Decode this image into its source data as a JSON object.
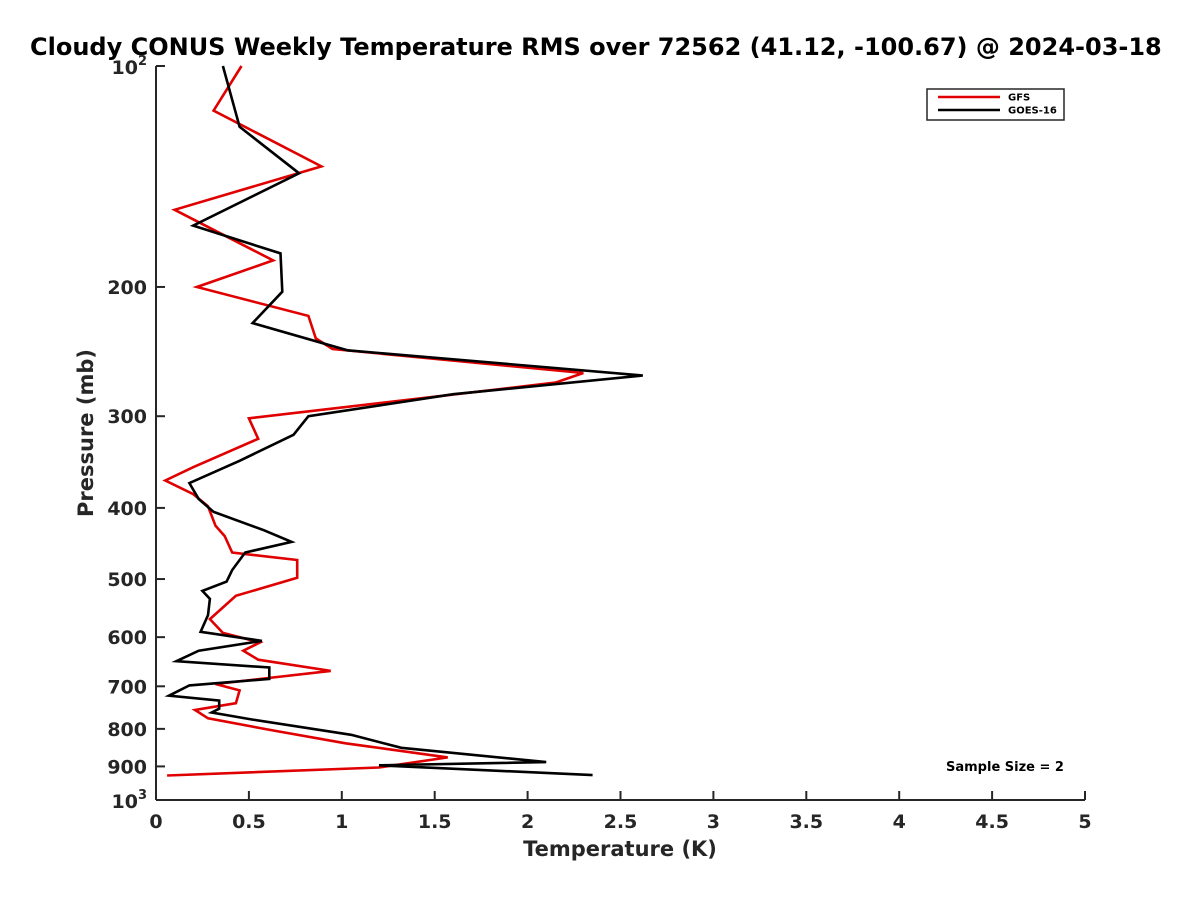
{
  "chart_data": {
    "type": "line",
    "title": "Cloudy CONUS Weekly Temperature RMS over 72562 (41.12, -100.67) @ 2024-03-18",
    "xlabel": "Temperature (K)",
    "ylabel": "Pressure (mb)",
    "xlim": [
      0,
      5
    ],
    "ylim": [
      100,
      1000
    ],
    "yscale": "log",
    "y_reversed": true,
    "x_ticks": [
      "0",
      "0.5",
      "1",
      "1.5",
      "2",
      "2.5",
      "3",
      "3.5",
      "4",
      "4.5",
      "5"
    ],
    "y_ticks": [
      {
        "value": 100,
        "base": "10",
        "exp": "2"
      },
      {
        "value": 200,
        "label": "200"
      },
      {
        "value": 300,
        "label": "300"
      },
      {
        "value": 400,
        "label": "400"
      },
      {
        "value": 500,
        "label": "500"
      },
      {
        "value": 600,
        "label": "600"
      },
      {
        "value": 700,
        "label": "700"
      },
      {
        "value": 800,
        "label": "800"
      },
      {
        "value": 900,
        "label": "900"
      },
      {
        "value": 1000,
        "base": "10",
        "exp": "3"
      }
    ],
    "grid": false,
    "legend_position": "top-right",
    "annotation": "Sample Size = 2",
    "series": [
      {
        "name": "GFS",
        "color": "#e00000",
        "points": [
          [
            0.46,
            100
          ],
          [
            0.31,
            115
          ],
          [
            0.89,
            137
          ],
          [
            0.1,
            157
          ],
          [
            0.63,
            184
          ],
          [
            0.22,
            200
          ],
          [
            0.82,
            219
          ],
          [
            0.86,
            235
          ],
          [
            0.95,
            243
          ],
          [
            2.3,
            262
          ],
          [
            2.15,
            270
          ],
          [
            0.5,
            302
          ],
          [
            0.55,
            322
          ],
          [
            0.2,
            352
          ],
          [
            0.05,
            367
          ],
          [
            0.2,
            383
          ],
          [
            0.28,
            398
          ],
          [
            0.32,
            423
          ],
          [
            0.37,
            437
          ],
          [
            0.41,
            460
          ],
          [
            0.76,
            471
          ],
          [
            0.76,
            498
          ],
          [
            0.43,
            527
          ],
          [
            0.29,
            567
          ],
          [
            0.36,
            592
          ],
          [
            0.56,
            610
          ],
          [
            0.47,
            626
          ],
          [
            0.55,
            644
          ],
          [
            0.94,
            667
          ],
          [
            0.32,
            695
          ],
          [
            0.45,
            709
          ],
          [
            0.43,
            738
          ],
          [
            0.21,
            754
          ],
          [
            0.28,
            774
          ],
          [
            0.62,
            803
          ],
          [
            1.02,
            837
          ],
          [
            1.57,
            875
          ],
          [
            1.2,
            903
          ],
          [
            0.06,
            926
          ]
        ]
      },
      {
        "name": "GOES-16",
        "color": "#000000",
        "points": [
          [
            0.36,
            100
          ],
          [
            0.45,
            121
          ],
          [
            0.77,
            140
          ],
          [
            0.2,
            165
          ],
          [
            0.67,
            180
          ],
          [
            0.68,
            203
          ],
          [
            0.52,
            224
          ],
          [
            1.03,
            244
          ],
          [
            2.62,
            264
          ],
          [
            1.6,
            280
          ],
          [
            0.82,
            300
          ],
          [
            0.74,
            318
          ],
          [
            0.45,
            345
          ],
          [
            0.18,
            370
          ],
          [
            0.23,
            389
          ],
          [
            0.31,
            405
          ],
          [
            0.58,
            429
          ],
          [
            0.73,
            445
          ],
          [
            0.48,
            460
          ],
          [
            0.41,
            486
          ],
          [
            0.38,
            504
          ],
          [
            0.25,
            519
          ],
          [
            0.29,
            532
          ],
          [
            0.28,
            560
          ],
          [
            0.24,
            590
          ],
          [
            0.57,
            607
          ],
          [
            0.23,
            626
          ],
          [
            0.11,
            647
          ],
          [
            0.61,
            660
          ],
          [
            0.61,
            684
          ],
          [
            0.18,
            698
          ],
          [
            0.07,
            721
          ],
          [
            0.34,
            732
          ],
          [
            0.34,
            751
          ],
          [
            0.3,
            760
          ],
          [
            0.52,
            777
          ],
          [
            1.05,
            815
          ],
          [
            1.32,
            849
          ],
          [
            2.1,
            888
          ],
          [
            1.2,
            897
          ],
          [
            2.35,
            925
          ]
        ]
      }
    ]
  }
}
